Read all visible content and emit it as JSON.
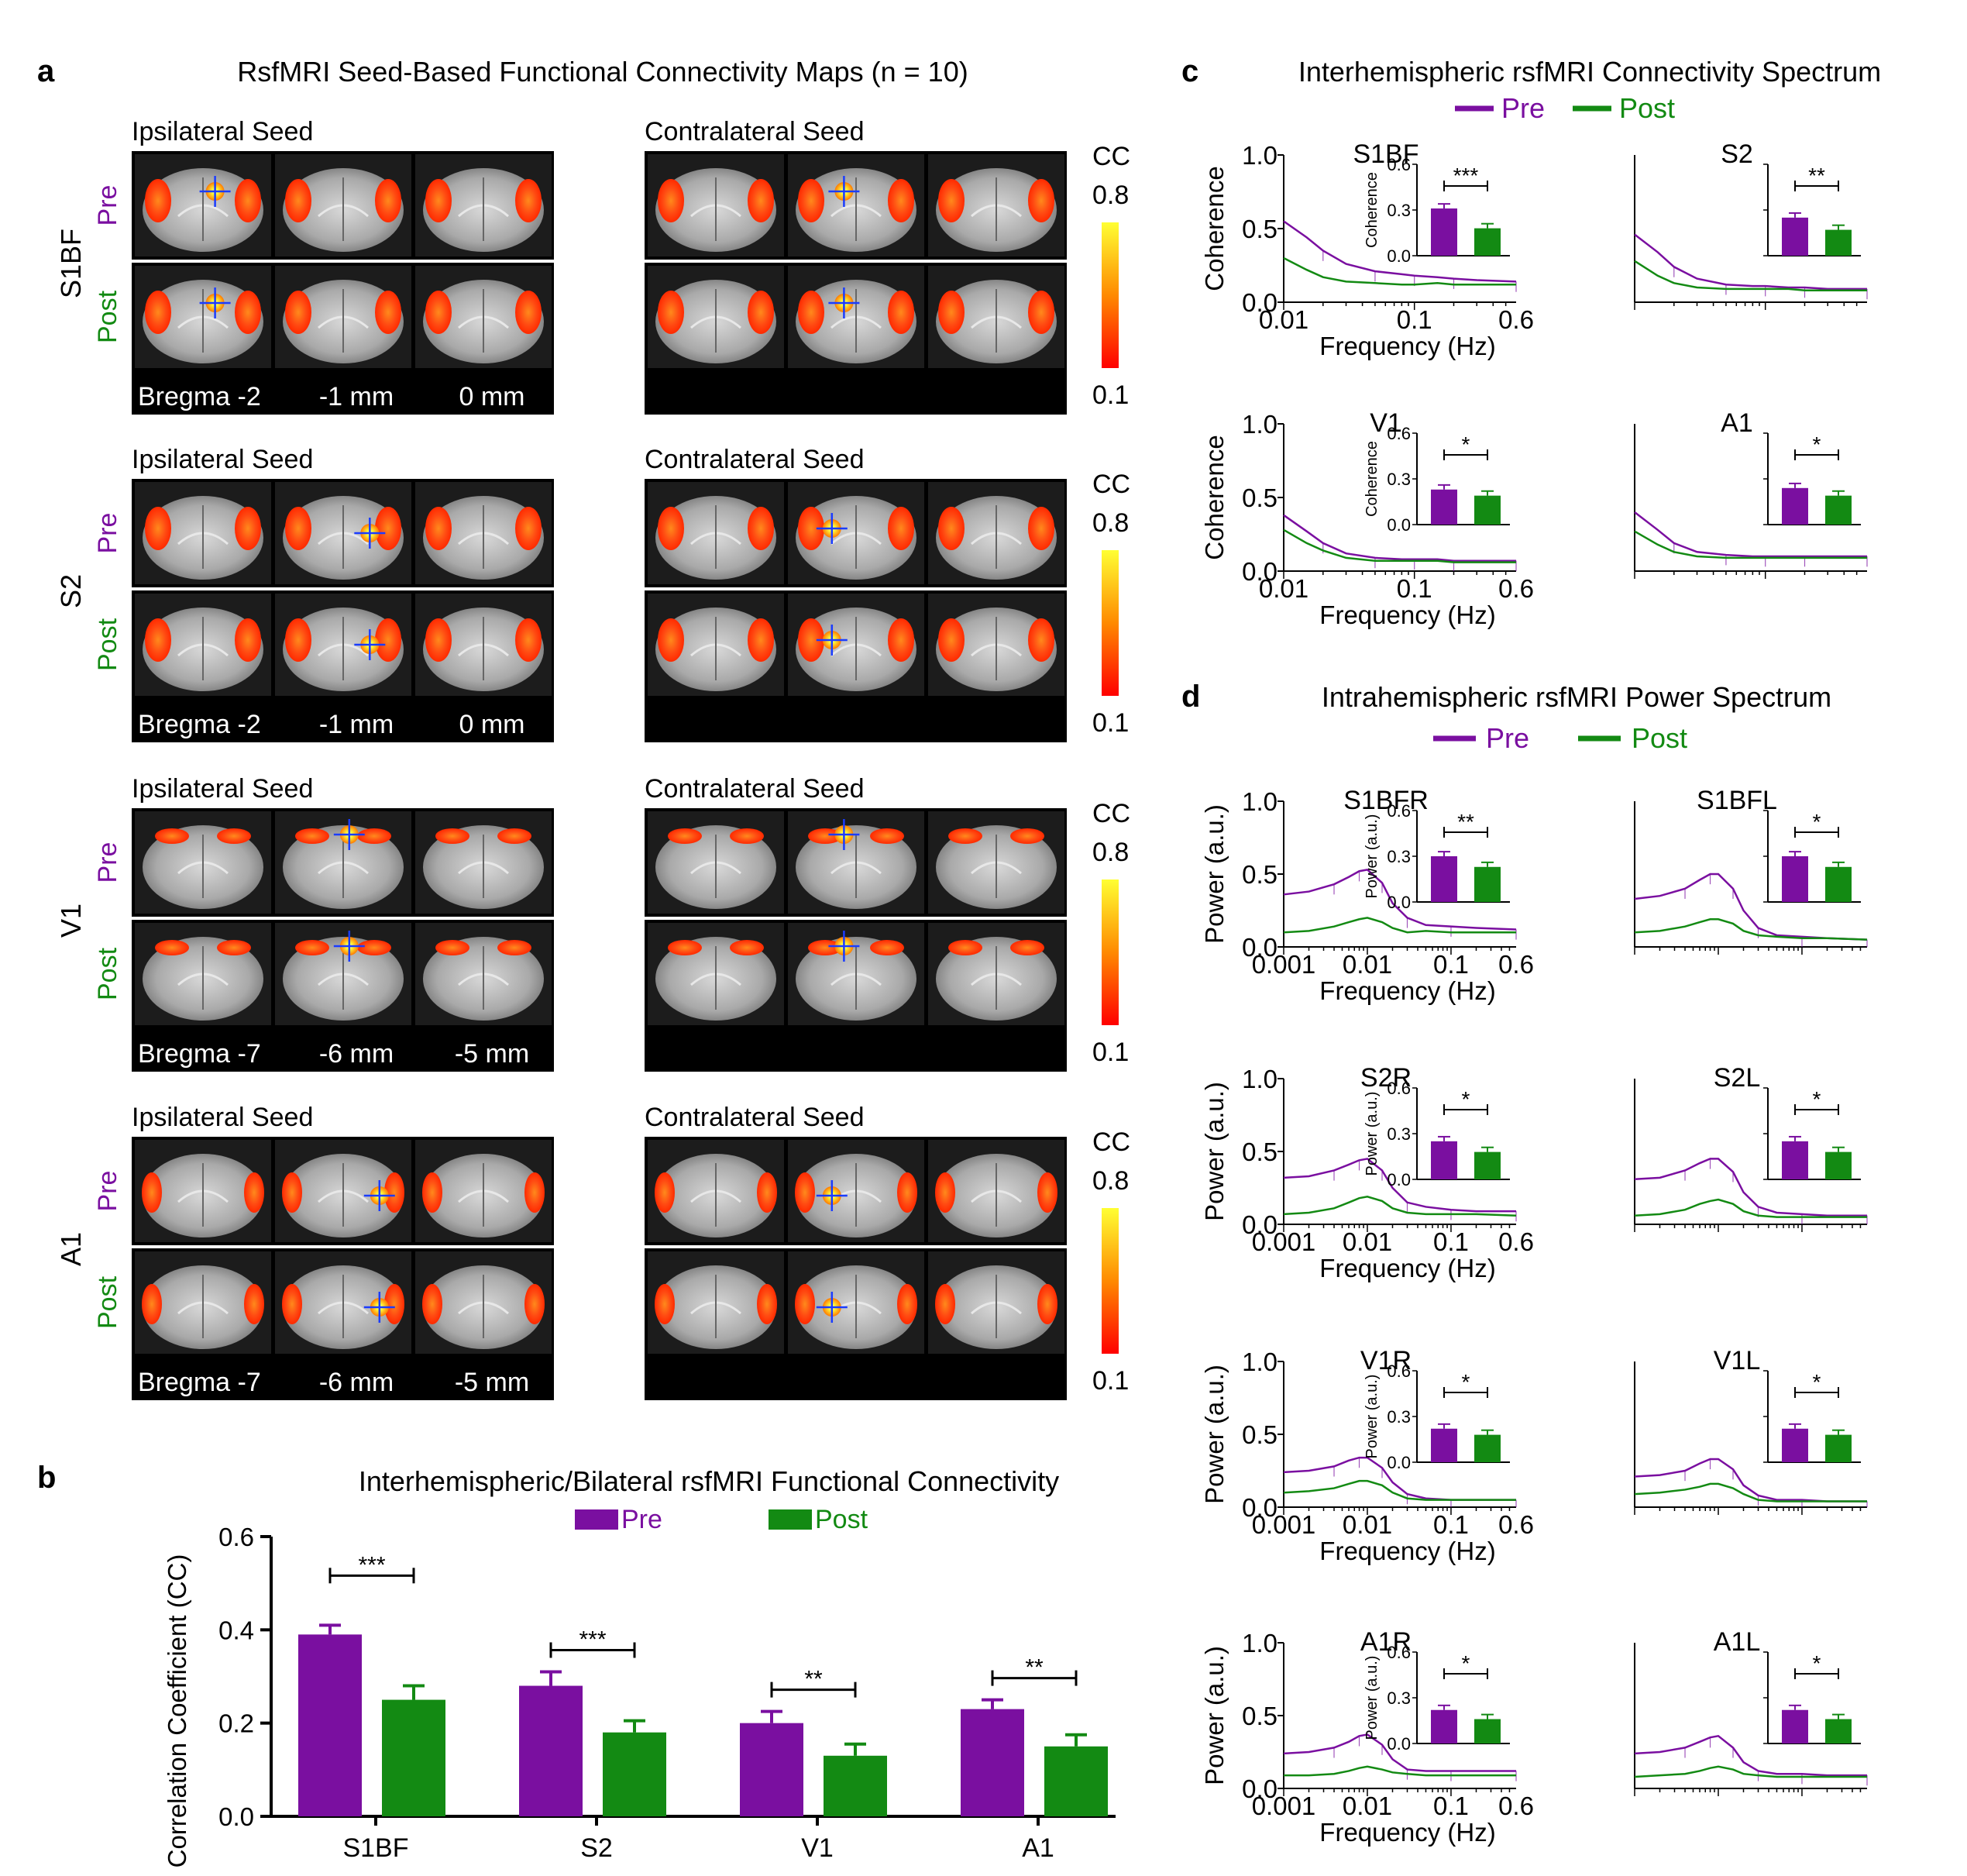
{
  "colors": {
    "pre": "#7a0fa0",
    "post": "#138a13"
  },
  "panel_a": {
    "letter": "a",
    "title": "RsfMRI Seed-Based Functional Connectivity Maps (n = 10)",
    "colorbar": {
      "label": "CC",
      "max": "0.8",
      "min": "0.1"
    },
    "row_pre": "Pre",
    "row_post": "Post",
    "ipsi_label": "Ipsilateral Seed",
    "contra_label": "Contralateral Seed",
    "rows": [
      {
        "region": "S1BF",
        "bregma": [
          "Bregma -2",
          "-1 mm",
          "0 mm"
        ]
      },
      {
        "region": "S2",
        "bregma": [
          "Bregma -2",
          "-1 mm",
          "0 mm"
        ]
      },
      {
        "region": "V1",
        "bregma": [
          "Bregma -7",
          "-6 mm",
          "-5 mm"
        ]
      },
      {
        "region": "A1",
        "bregma": [
          "Bregma -7",
          "-6 mm",
          "-5 mm"
        ]
      }
    ]
  },
  "panel_b": {
    "letter": "b",
    "title": "Interhemispheric/Bilateral rsfMRI Functional Connectivity",
    "legend": [
      "Pre",
      "Post"
    ],
    "ylabel": "Correlation Coefficient (CC)",
    "yticks": [
      "0.0",
      "0.2",
      "0.4",
      "0.6"
    ],
    "sig": [
      "***",
      "***",
      "**",
      "**"
    ]
  },
  "panel_c": {
    "letter": "c",
    "title": "Interhemispheric rsfMRI Connectivity Spectrum",
    "legend": [
      "Pre",
      "Post"
    ],
    "ylabel": "Coherence",
    "xlabel": "Frequency (Hz)",
    "xticks": [
      "0.01",
      "0.1",
      "0.6"
    ],
    "yticks": [
      "0.0",
      "0.5",
      "1.0"
    ],
    "inset_yticks": [
      "0.0",
      "0.3",
      "0.6"
    ],
    "inset_ylabel": "Coherence",
    "subplots": [
      {
        "title": "S1BF",
        "sig": "***"
      },
      {
        "title": "S2",
        "sig": "**"
      },
      {
        "title": "V1",
        "sig": "*"
      },
      {
        "title": "A1",
        "sig": "*"
      }
    ]
  },
  "panel_d": {
    "letter": "d",
    "title": "Intrahemispheric rsfMRI Power Spectrum",
    "legend": [
      "Pre",
      "Post"
    ],
    "ylabel": "Power (a.u.)",
    "xlabel": "Frequency (Hz)",
    "xticks": [
      "0.001",
      "0.01",
      "0.1",
      "0.6"
    ],
    "yticks": [
      "0.0",
      "0.5",
      "1.0"
    ],
    "inset_yticks": [
      "0.0",
      "0.3",
      "0.6"
    ],
    "inset_ylabel": "Power (a.u.)",
    "subplots": [
      {
        "title": "S1BFR",
        "sig": "**"
      },
      {
        "title": "S1BFL",
        "sig": "*"
      },
      {
        "title": "S2R",
        "sig": "*"
      },
      {
        "title": "S2L",
        "sig": "*"
      },
      {
        "title": "V1R",
        "sig": "*"
      },
      {
        "title": "V1L",
        "sig": "*"
      },
      {
        "title": "A1R",
        "sig": "*"
      },
      {
        "title": "A1L",
        "sig": "*"
      }
    ]
  },
  "chart_data": [
    {
      "type": "bar",
      "title": "Interhemispheric/Bilateral rsfMRI Functional Connectivity",
      "categories": [
        "S1BF",
        "S2",
        "V1",
        "A1"
      ],
      "series": [
        {
          "name": "Pre",
          "values": [
            0.39,
            0.28,
            0.2,
            0.23
          ],
          "error": [
            0.02,
            0.03,
            0.025,
            0.02
          ]
        },
        {
          "name": "Post",
          "values": [
            0.25,
            0.18,
            0.13,
            0.15
          ],
          "error": [
            0.03,
            0.025,
            0.025,
            0.025
          ]
        }
      ],
      "xlabel": "",
      "ylabel": "Correlation Coefficient (CC)",
      "ylim": [
        0,
        0.6
      ]
    },
    {
      "type": "line",
      "title": "Interhemispheric rsfMRI Connectivity Spectrum",
      "xlabel": "Frequency (Hz)",
      "ylabel": "Coherence",
      "xscale": "log",
      "xlim": [
        0.01,
        0.6
      ],
      "ylim": [
        0,
        1.0
      ],
      "x": [
        0.01,
        0.015,
        0.02,
        0.03,
        0.05,
        0.08,
        0.1,
        0.15,
        0.2,
        0.3,
        0.6
      ],
      "panels": [
        {
          "name": "S1BF",
          "series": [
            {
              "name": "Pre",
              "values": [
                0.55,
                0.44,
                0.35,
                0.26,
                0.21,
                0.19,
                0.18,
                0.17,
                0.16,
                0.15,
                0.14
              ]
            },
            {
              "name": "Post",
              "values": [
                0.3,
                0.22,
                0.17,
                0.14,
                0.13,
                0.12,
                0.12,
                0.13,
                0.12,
                0.12,
                0.12
              ]
            }
          ],
          "inset": {
            "Pre": 0.31,
            "Post": 0.18
          }
        },
        {
          "name": "S2",
          "series": [
            {
              "name": "Pre",
              "values": [
                0.46,
                0.34,
                0.24,
                0.16,
                0.12,
                0.11,
                0.11,
                0.1,
                0.1,
                0.09,
                0.09
              ]
            },
            {
              "name": "Post",
              "values": [
                0.28,
                0.18,
                0.13,
                0.1,
                0.09,
                0.09,
                0.09,
                0.09,
                0.08,
                0.08,
                0.08
              ]
            }
          ],
          "inset": {
            "Pre": 0.25,
            "Post": 0.17
          }
        },
        {
          "name": "V1",
          "series": [
            {
              "name": "Pre",
              "values": [
                0.38,
                0.27,
                0.19,
                0.12,
                0.09,
                0.08,
                0.08,
                0.08,
                0.07,
                0.07,
                0.07
              ]
            },
            {
              "name": "Post",
              "values": [
                0.28,
                0.19,
                0.14,
                0.09,
                0.07,
                0.07,
                0.07,
                0.07,
                0.06,
                0.06,
                0.06
              ]
            }
          ],
          "inset": {
            "Pre": 0.23,
            "Post": 0.19
          }
        },
        {
          "name": "A1",
          "series": [
            {
              "name": "Pre",
              "values": [
                0.4,
                0.28,
                0.19,
                0.13,
                0.11,
                0.1,
                0.1,
                0.1,
                0.1,
                0.1,
                0.1
              ]
            },
            {
              "name": "Post",
              "values": [
                0.27,
                0.18,
                0.13,
                0.1,
                0.09,
                0.09,
                0.09,
                0.09,
                0.09,
                0.09,
                0.09
              ]
            }
          ],
          "inset": {
            "Pre": 0.24,
            "Post": 0.19
          }
        }
      ]
    },
    {
      "type": "line",
      "title": "Intrahemispheric rsfMRI Power Spectrum",
      "xlabel": "Frequency (Hz)",
      "ylabel": "Power (a.u.)",
      "xscale": "log",
      "xlim": [
        0.001,
        0.6
      ],
      "ylim": [
        0,
        1.0
      ],
      "x": [
        0.001,
        0.002,
        0.004,
        0.006,
        0.008,
        0.01,
        0.015,
        0.02,
        0.03,
        0.05,
        0.1,
        0.2,
        0.6
      ],
      "panels": [
        {
          "name": "S1BFR",
          "series": [
            {
              "name": "Pre",
              "values": [
                0.36,
                0.38,
                0.43,
                0.48,
                0.52,
                0.53,
                0.44,
                0.3,
                0.2,
                0.15,
                0.14,
                0.13,
                0.12
              ]
            },
            {
              "name": "Post",
              "values": [
                0.1,
                0.11,
                0.14,
                0.17,
                0.19,
                0.2,
                0.17,
                0.13,
                0.1,
                0.11,
                0.1,
                0.1,
                0.1
              ]
            }
          ],
          "inset": {
            "Pre": 0.3,
            "Post": 0.23
          }
        },
        {
          "name": "S1BFL",
          "series": [
            {
              "name": "Pre",
              "values": [
                0.33,
                0.35,
                0.4,
                0.46,
                0.5,
                0.5,
                0.4,
                0.25,
                0.13,
                0.08,
                0.07,
                0.06,
                0.05
              ]
            },
            {
              "name": "Post",
              "values": [
                0.1,
                0.11,
                0.14,
                0.17,
                0.19,
                0.19,
                0.16,
                0.11,
                0.08,
                0.07,
                0.06,
                0.06,
                0.05
              ]
            }
          ],
          "inset": {
            "Pre": 0.3,
            "Post": 0.23
          }
        },
        {
          "name": "S2R",
          "series": [
            {
              "name": "Pre",
              "values": [
                0.32,
                0.33,
                0.37,
                0.41,
                0.44,
                0.45,
                0.37,
                0.25,
                0.15,
                0.12,
                0.1,
                0.09,
                0.09
              ]
            },
            {
              "name": "Post",
              "values": [
                0.07,
                0.08,
                0.11,
                0.15,
                0.18,
                0.19,
                0.16,
                0.11,
                0.08,
                0.07,
                0.07,
                0.07,
                0.06
              ]
            }
          ],
          "inset": {
            "Pre": 0.25,
            "Post": 0.18
          }
        },
        {
          "name": "S2L",
          "series": [
            {
              "name": "Pre",
              "values": [
                0.31,
                0.32,
                0.37,
                0.42,
                0.45,
                0.45,
                0.36,
                0.22,
                0.12,
                0.08,
                0.07,
                0.06,
                0.06
              ]
            },
            {
              "name": "Post",
              "values": [
                0.06,
                0.07,
                0.1,
                0.14,
                0.16,
                0.17,
                0.14,
                0.09,
                0.06,
                0.05,
                0.05,
                0.05,
                0.05
              ]
            }
          ],
          "inset": {
            "Pre": 0.25,
            "Post": 0.18
          }
        },
        {
          "name": "V1R",
          "series": [
            {
              "name": "Pre",
              "values": [
                0.24,
                0.25,
                0.28,
                0.32,
                0.34,
                0.34,
                0.27,
                0.17,
                0.09,
                0.06,
                0.05,
                0.05,
                0.05
              ]
            },
            {
              "name": "Post",
              "values": [
                0.1,
                0.11,
                0.13,
                0.16,
                0.18,
                0.18,
                0.15,
                0.1,
                0.06,
                0.05,
                0.05,
                0.05,
                0.05
              ]
            }
          ],
          "inset": {
            "Pre": 0.22,
            "Post": 0.18
          }
        },
        {
          "name": "V1L",
          "series": [
            {
              "name": "Pre",
              "values": [
                0.21,
                0.22,
                0.25,
                0.3,
                0.33,
                0.33,
                0.26,
                0.15,
                0.08,
                0.05,
                0.05,
                0.04,
                0.04
              ]
            },
            {
              "name": "Post",
              "values": [
                0.09,
                0.1,
                0.12,
                0.14,
                0.16,
                0.16,
                0.13,
                0.09,
                0.05,
                0.04,
                0.04,
                0.04,
                0.04
              ]
            }
          ],
          "inset": {
            "Pre": 0.22,
            "Post": 0.18
          }
        },
        {
          "name": "A1R",
          "series": [
            {
              "name": "Pre",
              "values": [
                0.24,
                0.25,
                0.28,
                0.32,
                0.36,
                0.37,
                0.3,
                0.2,
                0.13,
                0.12,
                0.12,
                0.12,
                0.12
              ]
            },
            {
              "name": "Post",
              "values": [
                0.09,
                0.09,
                0.1,
                0.12,
                0.14,
                0.15,
                0.13,
                0.11,
                0.1,
                0.09,
                0.09,
                0.09,
                0.09
              ]
            }
          ],
          "inset": {
            "Pre": 0.22,
            "Post": 0.16
          }
        },
        {
          "name": "A1L",
          "series": [
            {
              "name": "Pre",
              "values": [
                0.24,
                0.25,
                0.28,
                0.32,
                0.35,
                0.36,
                0.28,
                0.18,
                0.12,
                0.1,
                0.1,
                0.09,
                0.09
              ]
            },
            {
              "name": "Post",
              "values": [
                0.08,
                0.09,
                0.1,
                0.12,
                0.14,
                0.15,
                0.13,
                0.1,
                0.09,
                0.08,
                0.08,
                0.08,
                0.08
              ]
            }
          ],
          "inset": {
            "Pre": 0.22,
            "Post": 0.16
          }
        }
      ]
    }
  ]
}
